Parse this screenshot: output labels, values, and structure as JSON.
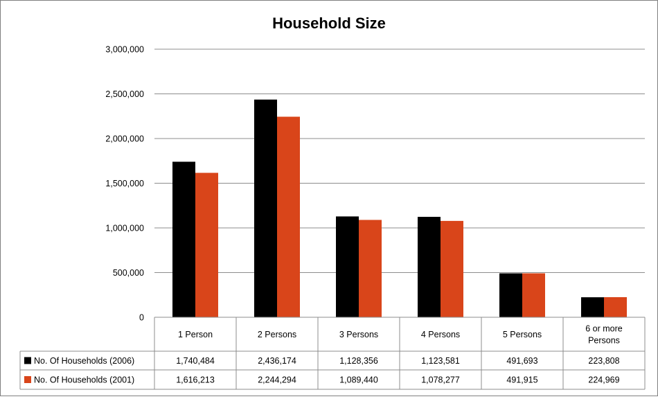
{
  "chart_data": {
    "type": "bar",
    "title": "Household Size",
    "categories": [
      "1 Person",
      "2 Persons",
      "3 Persons",
      "4 Persons",
      "5 Persons",
      "6 or more Persons"
    ],
    "categories_display": [
      [
        "1 Person"
      ],
      [
        "2 Persons"
      ],
      [
        "3 Persons"
      ],
      [
        "4 Persons"
      ],
      [
        "5 Persons"
      ],
      [
        "6 or more",
        "Persons"
      ]
    ],
    "series": [
      {
        "name": "No. Of Households (2006)",
        "color": "#000000",
        "values": [
          1740484,
          2436174,
          1128356,
          1123581,
          491693,
          223808
        ],
        "labels": [
          "1,740,484",
          "2,436,174",
          "1,128,356",
          "1,123,581",
          "491,693",
          "223,808"
        ]
      },
      {
        "name": "No. Of Households (2001)",
        "color": "#d9451a",
        "values": [
          1616213,
          2244294,
          1089440,
          1078277,
          491915,
          224969
        ],
        "labels": [
          "1,616,213",
          "2,244,294",
          "1,089,440",
          "1,078,277",
          "491,915",
          "224,969"
        ]
      }
    ],
    "ylim": [
      0,
      3000000
    ],
    "yticks": [
      0,
      500000,
      1000000,
      1500000,
      2000000,
      2500000,
      3000000
    ],
    "ytick_labels": [
      "0",
      "500,000",
      "1,000,000",
      "1,500,000",
      "2,000,000",
      "2,500,000",
      "3,000,000"
    ],
    "grid": true,
    "legend": "data-table",
    "xlabel": "",
    "ylabel": ""
  }
}
